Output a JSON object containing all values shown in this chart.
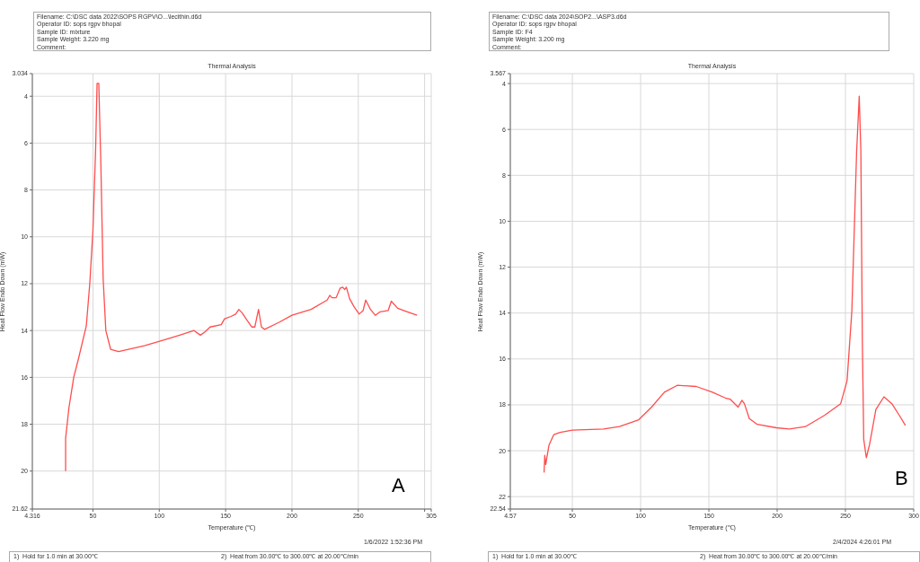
{
  "chart_data": [
    {
      "type": "line",
      "title": "Thermal Analysis",
      "xlabel": "Temperature (℃)",
      "ylabel": "Heat Flow Endo Down (mW)",
      "annotations": [
        "Filename: C:\\DSC data 2022\\SOPS RGPV\\O...\\lecithin.d6d",
        "Operator ID: sops rgpv bhopal",
        "Sample ID: mixture",
        "Sample Weight: 3.220 mg",
        "Comment:",
        "A",
        "1/6/2022 1:52:36 PM",
        "1)  Hold for 1.0 min at 30.00℃",
        "2)  Heat from 30.00℃ to 300.00℃ at 20.00℃/min"
      ],
      "xlim": [
        4.316,
        305
      ],
      "xticks": [
        4.316,
        50,
        100,
        150,
        200,
        250,
        {
          "value": 300,
          "label": null
        },
        305
      ],
      "ylim": [
        21.62,
        3.034
      ],
      "yticks": [
        3.034,
        4,
        6,
        8,
        10,
        12,
        14,
        16,
        18,
        20,
        21.62
      ],
      "grid": true,
      "marker": "none",
      "line_style": "solid",
      "series": [
        {
          "color": "#ff4d4d",
          "x": [
            29.4,
            29.4,
            31.9,
            35.5,
            39.1,
            45,
            47.6,
            50,
            52,
            53.1,
            54.4,
            56,
            57.7,
            59.7,
            63.3,
            69.3,
            88.7,
            100.8,
            115.3,
            126.2,
            131,
            134.6,
            138.3,
            146.7,
            149.2,
            154,
            157.6,
            160,
            162.5,
            166,
            169.7,
            172,
            174.8,
            177,
            179.4,
            190.3,
            200,
            214.4,
            226.5,
            228.5,
            230.2,
            233.3,
            236.2,
            238.2,
            239.8,
            241,
            243.5,
            247,
            250.7,
            253.6,
            255.6,
            259.2,
            262.8,
            266.5,
            272.5,
            274.9,
            279.7,
            287,
            294.3
          ],
          "values": [
            20.0,
            18.6,
            17.3,
            16.0,
            15.2,
            13.8,
            12.0,
            9.7,
            6.3,
            3.45,
            3.45,
            7.0,
            11.8,
            14.0,
            14.8,
            14.9,
            14.65,
            14.45,
            14.2,
            14.0,
            14.2,
            14.05,
            13.85,
            13.75,
            13.5,
            13.4,
            13.3,
            13.1,
            13.25,
            13.55,
            13.85,
            13.85,
            13.1,
            13.85,
            13.95,
            13.65,
            13.35,
            13.1,
            12.7,
            12.5,
            12.6,
            12.6,
            12.2,
            12.15,
            12.25,
            12.15,
            12.65,
            13.0,
            13.3,
            13.15,
            12.7,
            13.1,
            13.35,
            13.2,
            13.15,
            12.75,
            13.05,
            13.2,
            13.35
          ]
        }
      ]
    },
    {
      "type": "line",
      "title": "Thermal Analysis",
      "xlabel": "Temperature (℃)",
      "ylabel": "Heat Flow Endo Down (mW)",
      "annotations": [
        "Filename: C:\\DSC data 2024\\SOP2...\\ASP3.d6d",
        "Operator ID: sops rgpv bhopal",
        "Sample ID: F4",
        "Sample Weight: 3.200 mg",
        "Comment:",
        "B",
        "2/4/2024 4:26:01 PM",
        "1)  Hold for 1.0 min at 30.00℃",
        "2)  Heat from 30.00℃ to 300.00℃ at 20.00℃/min"
      ],
      "xlim": [
        4.57,
        300
      ],
      "xticks": [
        4.57,
        50,
        100,
        150,
        200,
        250,
        300
      ],
      "ylim": [
        22.54,
        3.567
      ],
      "yticks": [
        3.567,
        4,
        6,
        8,
        10,
        12,
        14,
        16,
        18,
        20,
        22,
        22.54
      ],
      "grid": true,
      "marker": "none",
      "line_style": "solid",
      "series": [
        {
          "color": "#ff4d4d",
          "x": [
            29.3,
            29.8,
            30.5,
            32.9,
            36.4,
            41.1,
            50,
            72.8,
            84.5,
            98.6,
            108,
            117.4,
            126.8,
            140.8,
            152.6,
            162,
            165.5,
            171.4,
            174.2,
            176,
            179.6,
            185.4,
            199.5,
            208.9,
            220.7,
            234.8,
            246.5,
            251.2,
            254.7,
            258.2,
            260.1,
            261.3,
            262.4,
            263.4,
            265.3,
            267.6,
            272.3,
            278.2,
            284,
            289.9,
            293.9
          ],
          "values": [
            20.95,
            20.2,
            20.6,
            19.75,
            19.3,
            19.2,
            19.1,
            19.05,
            18.95,
            18.65,
            18.1,
            17.45,
            17.15,
            17.2,
            17.45,
            17.7,
            17.75,
            18.1,
            17.8,
            17.95,
            18.6,
            18.85,
            19.0,
            19.05,
            18.95,
            18.45,
            17.95,
            16.95,
            13.9,
            6.95,
            4.55,
            6.95,
            15.3,
            19.5,
            20.3,
            19.75,
            18.2,
            17.65,
            17.95,
            18.5,
            18.9
          ]
        }
      ]
    }
  ]
}
